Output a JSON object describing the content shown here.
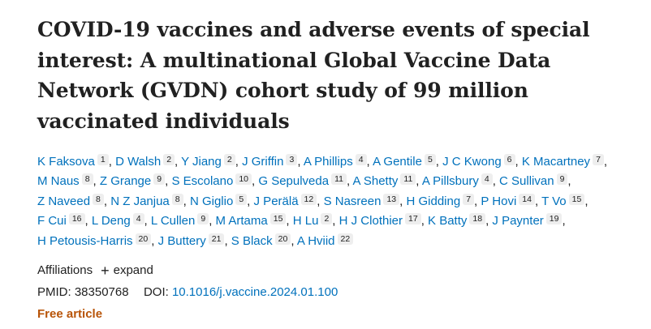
{
  "article": {
    "title": "COVID-19 vaccines and adverse events of special interest: A multinational Global Vaccine Data Network (GVDN) cohort study of 99 million vaccinated individuals"
  },
  "authors": [
    {
      "name": "K Faksova",
      "aff": "1"
    },
    {
      "name": "D Walsh",
      "aff": "2"
    },
    {
      "name": "Y Jiang",
      "aff": "2"
    },
    {
      "name": "J Griffin",
      "aff": "3"
    },
    {
      "name": "A Phillips",
      "aff": "4"
    },
    {
      "name": "A Gentile",
      "aff": "5"
    },
    {
      "name": "J C Kwong",
      "aff": "6"
    },
    {
      "name": "K Macartney",
      "aff": "7"
    },
    {
      "name": "M Naus",
      "aff": "8"
    },
    {
      "name": "Z Grange",
      "aff": "9"
    },
    {
      "name": "S Escolano",
      "aff": "10"
    },
    {
      "name": "G Sepulveda",
      "aff": "11"
    },
    {
      "name": "A Shetty",
      "aff": "11"
    },
    {
      "name": "A Pillsbury",
      "aff": "4"
    },
    {
      "name": "C Sullivan",
      "aff": "9"
    },
    {
      "name": "Z Naveed",
      "aff": "8"
    },
    {
      "name": "N Z Janjua",
      "aff": "8"
    },
    {
      "name": "N Giglio",
      "aff": "5"
    },
    {
      "name": "J Perälä",
      "aff": "12"
    },
    {
      "name": "S Nasreen",
      "aff": "13"
    },
    {
      "name": "H Gidding",
      "aff": "7"
    },
    {
      "name": "P Hovi",
      "aff": "14"
    },
    {
      "name": "T Vo",
      "aff": "15"
    },
    {
      "name": "F Cui",
      "aff": "16"
    },
    {
      "name": "L Deng",
      "aff": "4"
    },
    {
      "name": "L Cullen",
      "aff": "9"
    },
    {
      "name": "M Artama",
      "aff": "15"
    },
    {
      "name": "H Lu",
      "aff": "2"
    },
    {
      "name": "H J Clothier",
      "aff": "17"
    },
    {
      "name": "K Batty",
      "aff": "18"
    },
    {
      "name": "J Paynter",
      "aff": "19"
    },
    {
      "name": "H Petousis-Harris",
      "aff": "20"
    },
    {
      "name": "J Buttery",
      "aff": "21"
    },
    {
      "name": "S Black",
      "aff": "20"
    },
    {
      "name": "A Hviid",
      "aff": "22"
    }
  ],
  "affiliations": {
    "label": "Affiliations",
    "expand_label": "expand",
    "expand_icon": "plus-icon"
  },
  "identifiers": {
    "pmid_label": "PMID:",
    "pmid": "38350768",
    "doi_label": "DOI:",
    "doi": "10.1016/j.vaccine.2024.01.100"
  },
  "free_label": "Free article",
  "colors": {
    "link": "#0071bc",
    "free": "#b85408",
    "text": "#212121",
    "badge_bg": "#eeeeee"
  }
}
